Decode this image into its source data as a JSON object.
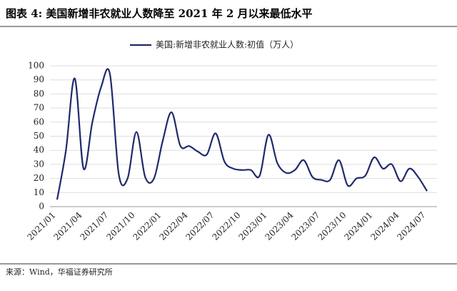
{
  "chart_data": {
    "type": "line",
    "title": "图表 4:  美国新增非农就业人数降至 2021 年 2 月以来最低水平",
    "source": "来源：Wind，华福证券研究所",
    "categories": [
      "2021/01",
      null,
      null,
      "2021/04",
      null,
      null,
      "2021/07",
      null,
      null,
      "2021/10",
      null,
      null,
      "2022/01",
      null,
      null,
      "2022/04",
      null,
      null,
      "2022/07",
      null,
      null,
      "2022/10",
      null,
      null,
      "2023/01",
      null,
      null,
      "2023/04",
      null,
      null,
      "2023/07",
      null,
      null,
      "2023/10",
      null,
      null,
      "2024/01",
      null,
      null,
      "2024/04",
      null,
      null,
      "2024/07"
    ],
    "series": [
      {
        "name": "美国:新增非农就业人数:初值（万人）",
        "color": "#1f2a6b",
        "values": [
          5,
          40,
          91,
          27,
          60,
          85,
          94,
          23,
          20,
          53,
          21,
          20,
          47,
          67,
          43,
          43,
          39,
          37,
          52,
          32,
          27,
          26,
          26,
          22,
          51,
          31,
          24,
          26,
          33,
          21,
          19,
          19,
          33,
          15,
          20,
          22,
          35,
          27,
          30,
          18,
          27,
          21,
          11
        ]
      }
    ],
    "ylim": [
      0,
      100
    ],
    "yticks": [
      0,
      10,
      20,
      30,
      40,
      50,
      60,
      70,
      80,
      90,
      100
    ],
    "grid": true,
    "legend": "top"
  }
}
